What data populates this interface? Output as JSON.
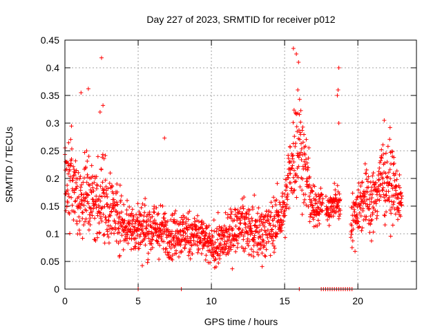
{
  "chart_data": {
    "type": "scatter",
    "title": "Day 227 of 2023, SRMTID for receiver p012",
    "xlabel": "GPS time / hours",
    "ylabel": "SRMTID / TECUs",
    "xlim": [
      0,
      24
    ],
    "ylim": [
      0,
      0.45
    ],
    "x_ticks": [
      0,
      5,
      10,
      15,
      20
    ],
    "x_tick_labels": [
      "0",
      "5",
      "10",
      "15",
      "20"
    ],
    "y_ticks": [
      0,
      0.05,
      0.1,
      0.15,
      0.2,
      0.25,
      0.3,
      0.35,
      0.4,
      0.45
    ],
    "y_tick_labels": [
      "0",
      "0.05",
      "0.1",
      "0.15",
      "0.2",
      "0.25",
      "0.3",
      "0.35",
      "0.4",
      "0.45"
    ],
    "grid": true,
    "marker": "plus",
    "series": [
      {
        "name": "SRMTID",
        "color": "#ff0000",
        "envelope": [
          {
            "t": 0.0,
            "base": 0.19,
            "spread": 0.05
          },
          {
            "t": 0.5,
            "base": 0.2,
            "spread": 0.06
          },
          {
            "t": 1.0,
            "base": 0.16,
            "spread": 0.05
          },
          {
            "t": 1.5,
            "base": 0.18,
            "spread": 0.06
          },
          {
            "t": 2.0,
            "base": 0.15,
            "spread": 0.05
          },
          {
            "t": 2.5,
            "base": 0.17,
            "spread": 0.06
          },
          {
            "t": 3.0,
            "base": 0.15,
            "spread": 0.05
          },
          {
            "t": 4.0,
            "base": 0.12,
            "spread": 0.035
          },
          {
            "t": 5.0,
            "base": 0.11,
            "spread": 0.035
          },
          {
            "t": 6.0,
            "base": 0.11,
            "spread": 0.035
          },
          {
            "t": 7.0,
            "base": 0.1,
            "spread": 0.03
          },
          {
            "t": 8.0,
            "base": 0.1,
            "spread": 0.03
          },
          {
            "t": 9.0,
            "base": 0.1,
            "spread": 0.03
          },
          {
            "t": 10.0,
            "base": 0.075,
            "spread": 0.025
          },
          {
            "t": 11.0,
            "base": 0.09,
            "spread": 0.03
          },
          {
            "t": 12.0,
            "base": 0.12,
            "spread": 0.03
          },
          {
            "t": 13.0,
            "base": 0.1,
            "spread": 0.035
          },
          {
            "t": 14.0,
            "base": 0.11,
            "spread": 0.035
          },
          {
            "t": 15.0,
            "base": 0.14,
            "spread": 0.035
          },
          {
            "t": 15.5,
            "base": 0.24,
            "spread": 0.06
          },
          {
            "t": 16.0,
            "base": 0.27,
            "spread": 0.07
          },
          {
            "t": 16.5,
            "base": 0.2,
            "spread": 0.05
          },
          {
            "t": 17.0,
            "base": 0.14,
            "spread": 0.03
          },
          {
            "t": 17.5,
            "base": 0.16,
            "spread": 0.02
          },
          {
            "t": 18.0,
            "base": 0.14,
            "spread": 0.02
          },
          {
            "t": 18.5,
            "base": 0.16,
            "spread": 0.02
          },
          {
            "t": 19.0,
            "base": 0.15,
            "spread": 0.02
          },
          {
            "t": 19.5,
            "base": 0.12,
            "spread": 0.03
          },
          {
            "t": 20.0,
            "base": 0.15,
            "spread": 0.04
          },
          {
            "t": 20.5,
            "base": 0.17,
            "spread": 0.04
          },
          {
            "t": 21.0,
            "base": 0.15,
            "spread": 0.04
          },
          {
            "t": 21.5,
            "base": 0.2,
            "spread": 0.05
          },
          {
            "t": 22.0,
            "base": 0.2,
            "spread": 0.05
          },
          {
            "t": 22.5,
            "base": 0.18,
            "spread": 0.04
          },
          {
            "t": 23.0,
            "base": 0.15,
            "spread": 0.025
          }
        ],
        "gaps": [
          [
            17.6,
            17.8
          ],
          [
            18.8,
            19.5
          ]
        ],
        "outliers": [
          {
            "x": 2.5,
            "y": 0.418
          },
          {
            "x": 15.6,
            "y": 0.435
          },
          {
            "x": 15.8,
            "y": 0.425
          },
          {
            "x": 15.95,
            "y": 0.41
          },
          {
            "x": 18.7,
            "y": 0.4
          },
          {
            "x": 18.65,
            "y": 0.36
          },
          {
            "x": 1.6,
            "y": 0.362
          },
          {
            "x": 1.1,
            "y": 0.355
          },
          {
            "x": 15.9,
            "y": 0.36
          },
          {
            "x": 18.6,
            "y": 0.35
          },
          {
            "x": 18.7,
            "y": 0.3
          },
          {
            "x": 6.8,
            "y": 0.273
          },
          {
            "x": 21.8,
            "y": 0.305
          },
          {
            "x": 22.2,
            "y": 0.292
          },
          {
            "x": 2.6,
            "y": 0.332
          },
          {
            "x": 2.4,
            "y": 0.32
          }
        ],
        "zero_points": [
          5.0,
          7.95,
          16.0,
          17.5,
          17.65,
          17.8,
          17.95,
          18.1,
          18.25,
          18.4,
          18.55,
          18.7,
          18.85,
          19.0,
          19.15,
          19.3,
          19.45,
          19.6
        ]
      }
    ]
  }
}
